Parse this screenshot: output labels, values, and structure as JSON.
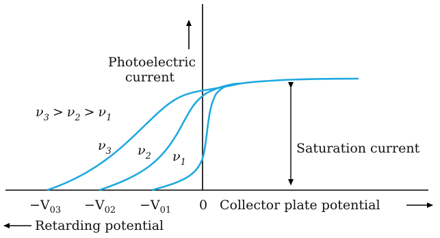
{
  "colors": {
    "curve": "#1fa9df",
    "axis": "#000000",
    "text": "#111111"
  },
  "axis": {
    "y_label_line1": "Photoelectric",
    "y_label_line2": "current",
    "x_label": "Collector plate potential",
    "origin": "0",
    "retarding": "Retarding potential"
  },
  "ticks": [
    {
      "prefix": "−V",
      "sub": "03"
    },
    {
      "prefix": "−V",
      "sub": "02"
    },
    {
      "prefix": "−V",
      "sub": "01"
    }
  ],
  "curves": [
    {
      "letter": "ν",
      "sub": "1"
    },
    {
      "letter": "ν",
      "sub": "2"
    },
    {
      "letter": "ν",
      "sub": "3"
    }
  ],
  "relation": [
    {
      "letter": "ν",
      "sub": "3"
    },
    {
      "op": ">"
    },
    {
      "letter": "ν",
      "sub": "2"
    },
    {
      "op": ">"
    },
    {
      "letter": "ν",
      "sub": "1"
    }
  ],
  "saturation_label": "Saturation current"
}
